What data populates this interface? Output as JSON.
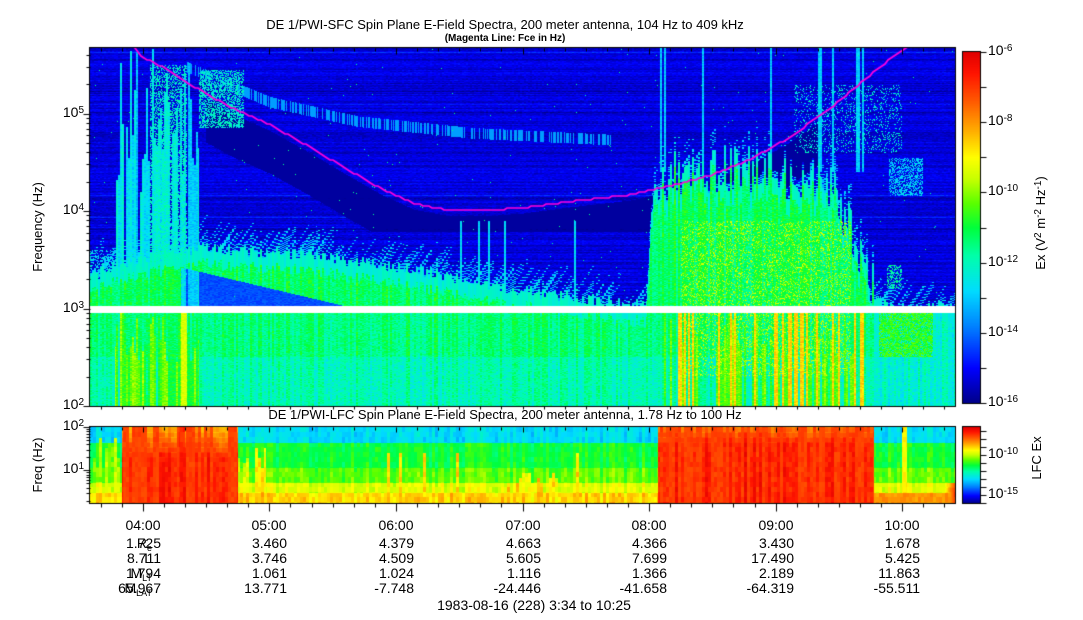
{
  "figure": {
    "footer": "1983-08-16 (228) 3:34 to 10:25"
  },
  "chart_data": [
    {
      "id": "sfc",
      "type": "heatmap",
      "title": "DE 1/PWI-SFC  Spin Plane E-Field Spectra, 200 meter antenna, 104 Hz to 409 kHz",
      "subtitle": "(Magenta Line: Fce in Hz)",
      "ylabel": "Frequency (Hz)",
      "time_start": "03:34",
      "time_end": "10:25",
      "x_range_hours": [
        3.583,
        10.417
      ],
      "x_tick_labels": [
        "04:00",
        "05:00",
        "06:00",
        "07:00",
        "08:00",
        "09:00",
        "10:00"
      ],
      "y_range_hz": [
        100,
        470000
      ],
      "y_tick_exponents": [
        2,
        3,
        4,
        5
      ],
      "gap_band_hz": [
        900,
        1050
      ],
      "colorbar": {
        "label": "Ex (V^2 m^-2 Hz^-1)",
        "tick_exponents": [
          -6,
          -8,
          -10,
          -12,
          -14,
          -16
        ],
        "range_exponents": [
          -16,
          -6
        ]
      },
      "fce_line_hz": [
        [
          3.9,
          520000
        ],
        [
          4.0,
          380000
        ],
        [
          4.17,
          295000
        ],
        [
          4.33,
          215000
        ],
        [
          4.5,
          160000
        ],
        [
          4.7,
          115000
        ],
        [
          5.0,
          77000
        ],
        [
          5.3,
          47000
        ],
        [
          5.6,
          27500
        ],
        [
          5.9,
          16500
        ],
        [
          6.15,
          11800
        ],
        [
          6.4,
          10300
        ],
        [
          6.7,
          10100
        ],
        [
          7.0,
          10800
        ],
        [
          7.4,
          12600
        ],
        [
          7.87,
          14800
        ],
        [
          8.2,
          18500
        ],
        [
          8.5,
          23500
        ],
        [
          8.8,
          34000
        ],
        [
          9.1,
          56000
        ],
        [
          9.4,
          105000
        ],
        [
          9.62,
          180000
        ],
        [
          9.82,
          300000
        ],
        [
          10.08,
          520000
        ]
      ],
      "green_cutoff_log10hz": [
        [
          3.583,
          3.3
        ],
        [
          3.78,
          3.45
        ],
        [
          4.42,
          3.62
        ],
        [
          5.3,
          3.55
        ],
        [
          6.0,
          3.42
        ],
        [
          6.5,
          3.3
        ],
        [
          7.0,
          3.18
        ],
        [
          7.6,
          3.08
        ],
        [
          7.98,
          3.02
        ],
        [
          8.04,
          4.3
        ],
        [
          8.3,
          4.42
        ],
        [
          8.7,
          4.45
        ],
        [
          9.1,
          4.35
        ],
        [
          9.45,
          4.25
        ],
        [
          9.6,
          3.8
        ],
        [
          9.75,
          3.3
        ],
        [
          9.85,
          3.05
        ],
        [
          10.0,
          3.02
        ],
        [
          10.417,
          3.02
        ]
      ],
      "features": [
        {
          "name": "pre-burst-speckle",
          "t": [
            3.583,
            3.8
          ],
          "lf": [
            2.96,
            3.6
          ],
          "mode": "cells",
          "density": 0.3,
          "level": -12.6
        },
        {
          "name": "auroral-burst-high",
          "t": [
            3.78,
            4.44
          ],
          "lf": [
            2.96,
            5.672
          ],
          "mode": "streaks",
          "density": 0.78,
          "level": -12.5
        },
        {
          "name": "auroral-burst-low",
          "t": [
            3.78,
            4.44
          ],
          "lf": [
            2.0,
            2.96
          ],
          "mode": "streaks",
          "density": 0.85,
          "level": -10.4
        },
        {
          "name": "burst-bright-cells",
          "t": [
            4.05,
            4.35
          ],
          "lf": [
            3.3,
            5.5
          ],
          "mode": "cells",
          "density": 0.45,
          "level": -12.1
        },
        {
          "name": "yellow-line",
          "t": [
            4.3,
            4.345
          ],
          "lf": [
            2.0,
            2.96
          ],
          "mode": "solid",
          "level": -9.4
        },
        {
          "name": "post-burst-cyan-blobs",
          "t": [
            4.44,
            4.8
          ],
          "lf": [
            4.85,
            5.45
          ],
          "mode": "cells",
          "density": 0.55,
          "level": -12.2
        },
        {
          "name": "drift-arc",
          "mode": "arc",
          "points": [
            [
              4.35,
              5.48
            ],
            [
              5.0,
              5.12
            ],
            [
              5.7,
              4.92
            ],
            [
              6.6,
              4.8
            ],
            [
              7.7,
              4.73
            ]
          ],
          "width": 0.055,
          "density": 0.55,
          "level": -13.5
        },
        {
          "name": "mid-thin-streaks",
          "t": [
            5.9,
            8.0
          ],
          "lf": [
            2.96,
            3.9
          ],
          "mode": "vstreaks",
          "density": 0.05,
          "level": -12.7
        },
        {
          "name": "low-cyan-swath",
          "t": [
            7.0,
            7.17
          ],
          "lf": [
            2.0,
            2.96
          ],
          "mode": "solid",
          "level": -12.5
        },
        {
          "name": "right-low-yellow",
          "t": [
            8.1,
            9.65
          ],
          "lf": [
            2.0,
            2.96
          ],
          "mode": "streaks",
          "density": 0.5,
          "level": -10.0
        },
        {
          "name": "right-red-streaks",
          "t": [
            8.15,
            9.7
          ],
          "lf": [
            2.0,
            2.96
          ],
          "mode": "vstreaks",
          "density": 0.18,
          "level": -8.6
        },
        {
          "name": "right-activity-yellow",
          "t": [
            8.25,
            9.6
          ],
          "lf": [
            2.3,
            3.9
          ],
          "mode": "cells",
          "density": 0.22,
          "level": -9.7
        },
        {
          "name": "right-tall-streaks",
          "t": [
            8.05,
            9.75
          ],
          "lf": [
            4.4,
            5.672
          ],
          "mode": "vstreaks",
          "density": 0.12,
          "level": -13.0
        },
        {
          "name": "akr-dashes",
          "t": [
            9.15,
            10.0
          ],
          "lf": [
            4.6,
            5.3
          ],
          "mode": "cells",
          "density": 0.16,
          "level": -12.3
        },
        {
          "name": "right-small-green",
          "t": [
            9.88,
            10.0
          ],
          "lf": [
            3.2,
            3.45
          ],
          "mode": "cells",
          "density": 0.5,
          "level": -11.8
        },
        {
          "name": "right-green-blob",
          "t": [
            9.82,
            10.25
          ],
          "lf": [
            2.5,
            2.95
          ],
          "mode": "cells",
          "density": 0.75,
          "level": -10.6
        },
        {
          "name": "right-cyan-patch",
          "t": [
            9.9,
            10.17
          ],
          "lf": [
            4.15,
            4.55
          ],
          "mode": "cells",
          "density": 0.5,
          "level": -12.8
        }
      ]
    },
    {
      "id": "lfc",
      "type": "heatmap",
      "title": "DE 1/PWI-LFC  Spin Plane E-Field Spectra, 200 meter antenna, 1.78 Hz to 100 Hz",
      "ylabel": "Freq (Hz)",
      "x_range_hours": [
        3.583,
        10.417
      ],
      "y_range_hz": [
        1.78,
        100
      ],
      "y_tick_exponents": [
        1,
        2
      ],
      "colorbar": {
        "label": "LFC Ex",
        "tick_exponents": [
          -10,
          -15
        ],
        "range_exponents": [
          -16,
          -6.5
        ]
      },
      "features": [
        {
          "name": "left-edge-active",
          "t": [
            3.583,
            3.83
          ],
          "lf": [
            0.249,
            2.0
          ],
          "mode": "streaks",
          "density": 0.9,
          "level": -10.2
        },
        {
          "name": "morning-burst",
          "t": [
            3.83,
            4.75
          ],
          "lf": [
            0.249,
            2.0
          ],
          "mode": "burst",
          "level": -7.4,
          "grad": 2.2,
          "topstart": 1.25,
          "topfrac": 0.45
        },
        {
          "name": "red-line",
          "t": [
            4.285,
            4.33
          ],
          "lf": [
            0.249,
            2.0
          ],
          "mode": "solid",
          "level": -7.3
        },
        {
          "name": "post-burst-yellow",
          "t": [
            4.75,
            4.97
          ],
          "lf": [
            0.249,
            1.5
          ],
          "mode": "streaks",
          "density": 0.75,
          "level": -9.3
        },
        {
          "name": "quiet-streaks",
          "t": [
            4.97,
            8.05
          ],
          "lf": [
            0.249,
            1.35
          ],
          "mode": "vstreaks",
          "density": 0.05,
          "level": -9.0
        },
        {
          "name": "midnight-yellow",
          "t": [
            6.88,
            7.35
          ],
          "lf": [
            0.249,
            0.95
          ],
          "mode": "streaks",
          "density": 0.65,
          "level": -8.9
        },
        {
          "name": "main-storm",
          "t": [
            8.07,
            9.78
          ],
          "lf": [
            0.249,
            2.0
          ],
          "mode": "burst",
          "level": -7.4,
          "grad": 2.4,
          "topstart": 1.55,
          "topfrac": 0.5
        },
        {
          "name": "right-bottom-orange",
          "t": [
            9.78,
            10.417
          ],
          "lf": [
            0.249,
            0.42
          ],
          "mode": "solid",
          "level": -8.4
        },
        {
          "name": "late-yellow-line",
          "t": [
            10.0,
            10.04
          ],
          "lf": [
            0.249,
            2.0
          ],
          "mode": "solid",
          "level": -9.3
        },
        {
          "name": "right-edge-red",
          "t": [
            10.33,
            10.417
          ],
          "lf": [
            0.249,
            0.6
          ],
          "mode": "rampright",
          "level": -7.6
        }
      ]
    }
  ],
  "ephemeris_table": {
    "time_labels": [
      "04:00",
      "05:00",
      "06:00",
      "07:00",
      "08:00",
      "09:00",
      "10:00"
    ],
    "rows": [
      {
        "label": "R",
        "sub": "e",
        "values": [
          "1.725",
          "3.460",
          "4.379",
          "4.663",
          "4.366",
          "3.430",
          "1.678"
        ]
      },
      {
        "label": "L",
        "sub": "",
        "values": [
          "8.711",
          "3.746",
          "4.509",
          "5.605",
          "7.699",
          "17.490",
          "5.425"
        ]
      },
      {
        "label": "M",
        "sub": "LT",
        "values": [
          "1.794",
          "1.061",
          "1.024",
          "1.116",
          "1.366",
          "2.189",
          "11.863"
        ]
      },
      {
        "label": "M",
        "sub": "LAT",
        "values": [
          "65.967",
          "13.771",
          "-7.748",
          "-24.446",
          "-41.658",
          "-64.319",
          "-55.511"
        ]
      }
    ]
  }
}
